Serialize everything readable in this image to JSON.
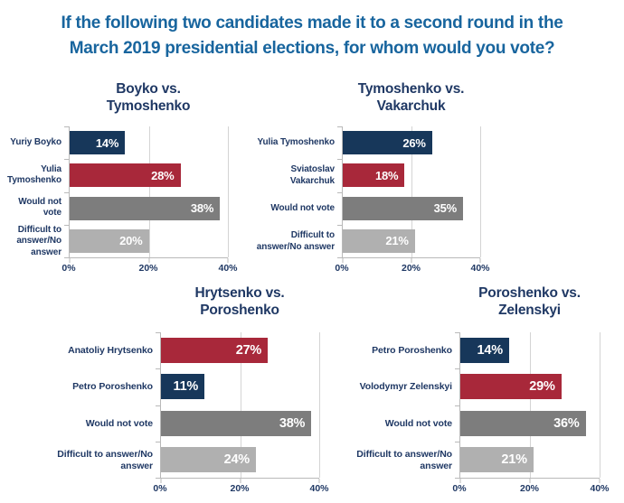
{
  "title": {
    "line1": "If the following two candidates made it to a second round in the",
    "line2": "March 2019 presidential elections, for whom would you vote?",
    "color": "#18659E"
  },
  "colors": {
    "navy_bar": "#17375A",
    "red_bar": "#A8283A",
    "dark_gray_bar": "#7D7D7D",
    "light_gray_bar": "#B0B0B0",
    "label_navy": "#1F3864",
    "value_label_white": "#FFFFFF",
    "gridline_gray": "#D4D4D4"
  },
  "chart_data": [
    {
      "type": "bar",
      "orientation": "horizontal",
      "title": "Boyko vs. Tymoshenko",
      "categories": [
        "Yuriy Boyko",
        "Yulia Tymoshenko",
        "Would not vote",
        "Difficult to answer/No answer"
      ],
      "values": [
        14,
        28,
        38,
        20
      ],
      "value_labels": [
        "14%",
        "28%",
        "38%",
        "20%"
      ],
      "bar_colors": [
        "#17375A",
        "#A8283A",
        "#7D7D7D",
        "#B0B0B0"
      ],
      "xlim": [
        0,
        40
      ],
      "x_ticks": [
        "0%",
        "20%",
        "40%"
      ],
      "x_tick_values": [
        0,
        20,
        40
      ],
      "grid": true,
      "legend": false
    },
    {
      "type": "bar",
      "orientation": "horizontal",
      "title": "Tymoshenko vs. Vakarchuk",
      "categories": [
        "Yulia Tymoshenko",
        "Sviatoslav Vakarchuk",
        "Would not vote",
        "Difficult to answer/No answer"
      ],
      "values": [
        26,
        18,
        35,
        21
      ],
      "value_labels": [
        "26%",
        "18%",
        "35%",
        "21%"
      ],
      "bar_colors": [
        "#17375A",
        "#A8283A",
        "#7D7D7D",
        "#B0B0B0"
      ],
      "xlim": [
        0,
        40
      ],
      "x_ticks": [
        "0%",
        "20%",
        "40%"
      ],
      "x_tick_values": [
        0,
        20,
        40
      ],
      "grid": true,
      "legend": false
    },
    {
      "type": "bar",
      "orientation": "horizontal",
      "title": "Hrytsenko vs. Poroshenko",
      "categories": [
        "Anatoliy Hrytsenko",
        "Petro Poroshenko",
        "Would not vote",
        "Difficult to answer/No answer"
      ],
      "values": [
        27,
        11,
        38,
        24
      ],
      "value_labels": [
        "27%",
        "11%",
        "38%",
        "24%"
      ],
      "bar_colors": [
        "#A8283A",
        "#17375A",
        "#7D7D7D",
        "#B0B0B0"
      ],
      "xlim": [
        0,
        40
      ],
      "x_ticks": [
        "0%",
        "20%",
        "40%"
      ],
      "x_tick_values": [
        0,
        20,
        40
      ],
      "grid": true,
      "legend": false
    },
    {
      "type": "bar",
      "orientation": "horizontal",
      "title": "Poroshenko vs. Zelenskyi",
      "categories": [
        "Petro Poroshenko",
        "Volodymyr Zelenskyi",
        "Would not vote",
        "Difficult to answer/No answer"
      ],
      "values": [
        14,
        29,
        36,
        21
      ],
      "value_labels": [
        "14%",
        "29%",
        "36%",
        "21%"
      ],
      "bar_colors": [
        "#17375A",
        "#A8283A",
        "#7D7D7D",
        "#B0B0B0"
      ],
      "xlim": [
        0,
        40
      ],
      "x_ticks": [
        "0%",
        "20%",
        "40%"
      ],
      "x_tick_values": [
        0,
        20,
        40
      ],
      "grid": true,
      "legend": false
    }
  ]
}
